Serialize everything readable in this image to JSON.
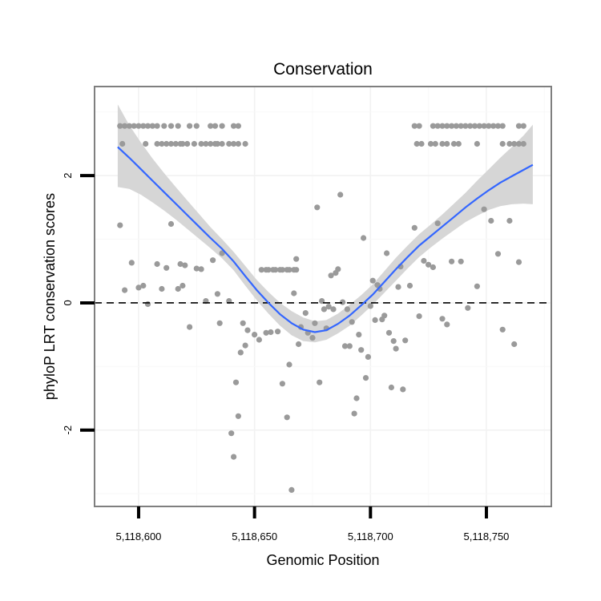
{
  "chart_data": {
    "type": "scatter",
    "title": "Conservation",
    "xlabel": "Genomic Position",
    "ylabel": "phyloP LRT conservation scores",
    "xlim": [
      5118581,
      5118778
    ],
    "ylim": [
      -3.2,
      3.4
    ],
    "x_ticks": [
      5118600,
      5118650,
      5118700,
      5118750
    ],
    "x_tick_labels": [
      "5,118,600",
      "5,118,650",
      "5,118,700",
      "5,118,750"
    ],
    "y_ticks": [
      -2,
      0,
      2
    ],
    "y_tick_labels": [
      "-2",
      "0",
      "2"
    ],
    "reference_line": {
      "y": 0,
      "style": "dashed"
    },
    "grid": true,
    "points": [
      [
        5118592,
        2.78
      ],
      [
        5118594,
        2.78
      ],
      [
        5118596,
        2.78
      ],
      [
        5118598,
        2.78
      ],
      [
        5118600,
        2.78
      ],
      [
        5118602,
        2.78
      ],
      [
        5118604,
        2.78
      ],
      [
        5118606,
        2.78
      ],
      [
        5118608,
        2.78
      ],
      [
        5118611,
        2.78
      ],
      [
        5118614,
        2.78
      ],
      [
        5118617,
        2.78
      ],
      [
        5118622,
        2.78
      ],
      [
        5118625,
        2.78
      ],
      [
        5118631,
        2.78
      ],
      [
        5118633,
        2.78
      ],
      [
        5118636,
        2.78
      ],
      [
        5118641,
        2.78
      ],
      [
        5118643,
        2.78
      ],
      [
        5118593,
        2.5
      ],
      [
        5118603,
        2.5
      ],
      [
        5118608,
        2.5
      ],
      [
        5118610,
        2.5
      ],
      [
        5118612,
        2.5
      ],
      [
        5118614,
        2.5
      ],
      [
        5118616,
        2.5
      ],
      [
        5118618,
        2.5
      ],
      [
        5118619,
        2.5
      ],
      [
        5118621,
        2.5
      ],
      [
        5118624,
        2.5
      ],
      [
        5118627,
        2.5
      ],
      [
        5118629,
        2.5
      ],
      [
        5118631,
        2.5
      ],
      [
        5118633,
        2.5
      ],
      [
        5118634,
        2.5
      ],
      [
        5118636,
        2.5
      ],
      [
        5118639,
        2.5
      ],
      [
        5118641,
        2.5
      ],
      [
        5118643,
        2.5
      ],
      [
        5118646,
        2.5
      ],
      [
        5118719,
        2.78
      ],
      [
        5118721,
        2.78
      ],
      [
        5118727,
        2.78
      ],
      [
        5118729,
        2.78
      ],
      [
        5118731,
        2.78
      ],
      [
        5118733,
        2.78
      ],
      [
        5118735,
        2.78
      ],
      [
        5118737,
        2.78
      ],
      [
        5118739,
        2.78
      ],
      [
        5118741,
        2.78
      ],
      [
        5118743,
        2.78
      ],
      [
        5118745,
        2.78
      ],
      [
        5118747,
        2.78
      ],
      [
        5118749,
        2.78
      ],
      [
        5118751,
        2.78
      ],
      [
        5118753,
        2.78
      ],
      [
        5118755,
        2.78
      ],
      [
        5118757,
        2.78
      ],
      [
        5118764,
        2.78
      ],
      [
        5118766,
        2.78
      ],
      [
        5118720,
        2.5
      ],
      [
        5118722,
        2.5
      ],
      [
        5118726,
        2.5
      ],
      [
        5118728,
        2.5
      ],
      [
        5118731,
        2.5
      ],
      [
        5118733,
        2.5
      ],
      [
        5118736,
        2.5
      ],
      [
        5118738,
        2.5
      ],
      [
        5118746,
        2.5
      ],
      [
        5118757,
        2.5
      ],
      [
        5118760,
        2.5
      ],
      [
        5118762,
        2.5
      ],
      [
        5118764,
        2.5
      ],
      [
        5118766,
        2.5
      ],
      [
        5118653,
        0.52
      ],
      [
        5118655,
        0.52
      ],
      [
        5118656,
        0.52
      ],
      [
        5118658,
        0.52
      ],
      [
        5118659,
        0.52
      ],
      [
        5118661,
        0.52
      ],
      [
        5118662,
        0.52
      ],
      [
        5118664,
        0.52
      ],
      [
        5118665,
        0.52
      ],
      [
        5118667,
        0.52
      ],
      [
        5118668,
        0.52
      ],
      [
        5118592,
        1.22
      ],
      [
        5118594,
        0.2
      ],
      [
        5118597,
        0.63
      ],
      [
        5118600,
        0.24
      ],
      [
        5118602,
        0.27
      ],
      [
        5118604,
        -0.02
      ],
      [
        5118608,
        0.61
      ],
      [
        5118610,
        0.22
      ],
      [
        5118612,
        0.55
      ],
      [
        5118614,
        1.24
      ],
      [
        5118617,
        0.22
      ],
      [
        5118618,
        0.61
      ],
      [
        5118619,
        0.27
      ],
      [
        5118620,
        0.59
      ],
      [
        5118622,
        -0.38
      ],
      [
        5118625,
        0.54
      ],
      [
        5118627,
        0.53
      ],
      [
        5118629,
        0.03
      ],
      [
        5118632,
        0.67
      ],
      [
        5118634,
        0.14
      ],
      [
        5118635,
        -0.32
      ],
      [
        5118636,
        0.78
      ],
      [
        5118639,
        0.03
      ],
      [
        5118640,
        -2.05
      ],
      [
        5118641,
        -2.42
      ],
      [
        5118642,
        -1.25
      ],
      [
        5118643,
        -1.78
      ],
      [
        5118644,
        -0.78
      ],
      [
        5118645,
        -0.32
      ],
      [
        5118646,
        -0.67
      ],
      [
        5118647,
        -0.43
      ],
      [
        5118650,
        -0.5
      ],
      [
        5118652,
        -0.58
      ],
      [
        5118655,
        -0.47
      ],
      [
        5118657,
        -0.46
      ],
      [
        5118660,
        -0.45
      ],
      [
        5118662,
        -1.27
      ],
      [
        5118664,
        -1.8
      ],
      [
        5118665,
        -0.97
      ],
      [
        5118666,
        -2.94
      ],
      [
        5118667,
        0.15
      ],
      [
        5118668,
        0.69
      ],
      [
        5118669,
        -0.65
      ],
      [
        5118670,
        -0.38
      ],
      [
        5118672,
        -0.16
      ],
      [
        5118673,
        -0.47
      ],
      [
        5118675,
        -0.55
      ],
      [
        5118676,
        -0.32
      ],
      [
        5118677,
        1.5
      ],
      [
        5118678,
        -1.25
      ],
      [
        5118679,
        0.03
      ],
      [
        5118680,
        -0.1
      ],
      [
        5118681,
        -0.4
      ],
      [
        5118682,
        -0.06
      ],
      [
        5118683,
        0.43
      ],
      [
        5118684,
        -0.1
      ],
      [
        5118685,
        0.47
      ],
      [
        5118686,
        0.53
      ],
      [
        5118687,
        1.7
      ],
      [
        5118688,
        0.01
      ],
      [
        5118689,
        -0.68
      ],
      [
        5118690,
        -0.1
      ],
      [
        5118691,
        -0.68
      ],
      [
        5118692,
        -0.3
      ],
      [
        5118693,
        -1.74
      ],
      [
        5118694,
        -1.5
      ],
      [
        5118695,
        -0.5
      ],
      [
        5118696,
        -0.74
      ],
      [
        5118697,
        1.02
      ],
      [
        5118698,
        -1.18
      ],
      [
        5118699,
        -0.85
      ],
      [
        5118700,
        -0.05
      ],
      [
        5118701,
        0.35
      ],
      [
        5118702,
        -0.27
      ],
      [
        5118703,
        0.28
      ],
      [
        5118704,
        0.22
      ],
      [
        5118705,
        -0.26
      ],
      [
        5118706,
        -0.2
      ],
      [
        5118707,
        0.78
      ],
      [
        5118708,
        -0.47
      ],
      [
        5118709,
        -1.33
      ],
      [
        5118710,
        -0.6
      ],
      [
        5118711,
        -0.72
      ],
      [
        5118712,
        0.25
      ],
      [
        5118713,
        0.57
      ],
      [
        5118714,
        -1.36
      ],
      [
        5118715,
        -0.59
      ],
      [
        5118717,
        0.27
      ],
      [
        5118719,
        1.18
      ],
      [
        5118721,
        -0.21
      ],
      [
        5118723,
        0.66
      ],
      [
        5118725,
        0.6
      ],
      [
        5118727,
        0.56
      ],
      [
        5118729,
        1.25
      ],
      [
        5118731,
        -0.25
      ],
      [
        5118733,
        -0.34
      ],
      [
        5118735,
        0.65
      ],
      [
        5118739,
        0.65
      ],
      [
        5118742,
        -0.08
      ],
      [
        5118746,
        0.26
      ],
      [
        5118749,
        1.47
      ],
      [
        5118752,
        1.29
      ],
      [
        5118755,
        0.77
      ],
      [
        5118757,
        -0.42
      ],
      [
        5118760,
        1.29
      ],
      [
        5118762,
        -0.65
      ],
      [
        5118764,
        0.64
      ]
    ],
    "smooth_curve": {
      "x": [
        5118591,
        5118596,
        5118601,
        5118606,
        5118611,
        5118616,
        5118621,
        5118626,
        5118631,
        5118636,
        5118641,
        5118646,
        5118651,
        5118656,
        5118661,
        5118666,
        5118671,
        5118676,
        5118681,
        5118686,
        5118691,
        5118696,
        5118701,
        5118706,
        5118711,
        5118716,
        5118721,
        5118726,
        5118731,
        5118736,
        5118741,
        5118746,
        5118751,
        5118756,
        5118761,
        5118766,
        5118770
      ],
      "y": [
        2.45,
        2.28,
        2.1,
        1.92,
        1.74,
        1.56,
        1.38,
        1.2,
        1.02,
        0.85,
        0.65,
        0.42,
        0.2,
        0.0,
        -0.18,
        -0.32,
        -0.42,
        -0.46,
        -0.43,
        -0.33,
        -0.2,
        -0.04,
        0.13,
        0.33,
        0.53,
        0.72,
        0.9,
        1.05,
        1.2,
        1.35,
        1.5,
        1.64,
        1.77,
        1.89,
        1.99,
        2.09,
        2.17
      ]
    },
    "confidence_band": {
      "lower": [
        1.82,
        1.79,
        1.7,
        1.58,
        1.45,
        1.31,
        1.16,
        1.01,
        0.86,
        0.7,
        0.51,
        0.27,
        0.04,
        -0.17,
        -0.36,
        -0.51,
        -0.6,
        -0.62,
        -0.58,
        -0.48,
        -0.36,
        -0.2,
        -0.03,
        0.16,
        0.35,
        0.54,
        0.72,
        0.87,
        1.01,
        1.14,
        1.27,
        1.37,
        1.46,
        1.52,
        1.55,
        1.56,
        1.55
      ],
      "upper": [
        3.12,
        2.79,
        2.52,
        2.27,
        2.04,
        1.82,
        1.61,
        1.4,
        1.19,
        1.0,
        0.8,
        0.58,
        0.36,
        0.17,
        0.0,
        -0.13,
        -0.23,
        -0.29,
        -0.27,
        -0.17,
        -0.03,
        0.12,
        0.29,
        0.5,
        0.71,
        0.9,
        1.08,
        1.23,
        1.39,
        1.56,
        1.73,
        1.92,
        2.1,
        2.28,
        2.45,
        2.63,
        2.8
      ]
    }
  },
  "colors": {
    "points": "#9a9a9a",
    "trend": "#3366ff",
    "band": "#d6d6d6",
    "border": "#7f7f7f"
  }
}
